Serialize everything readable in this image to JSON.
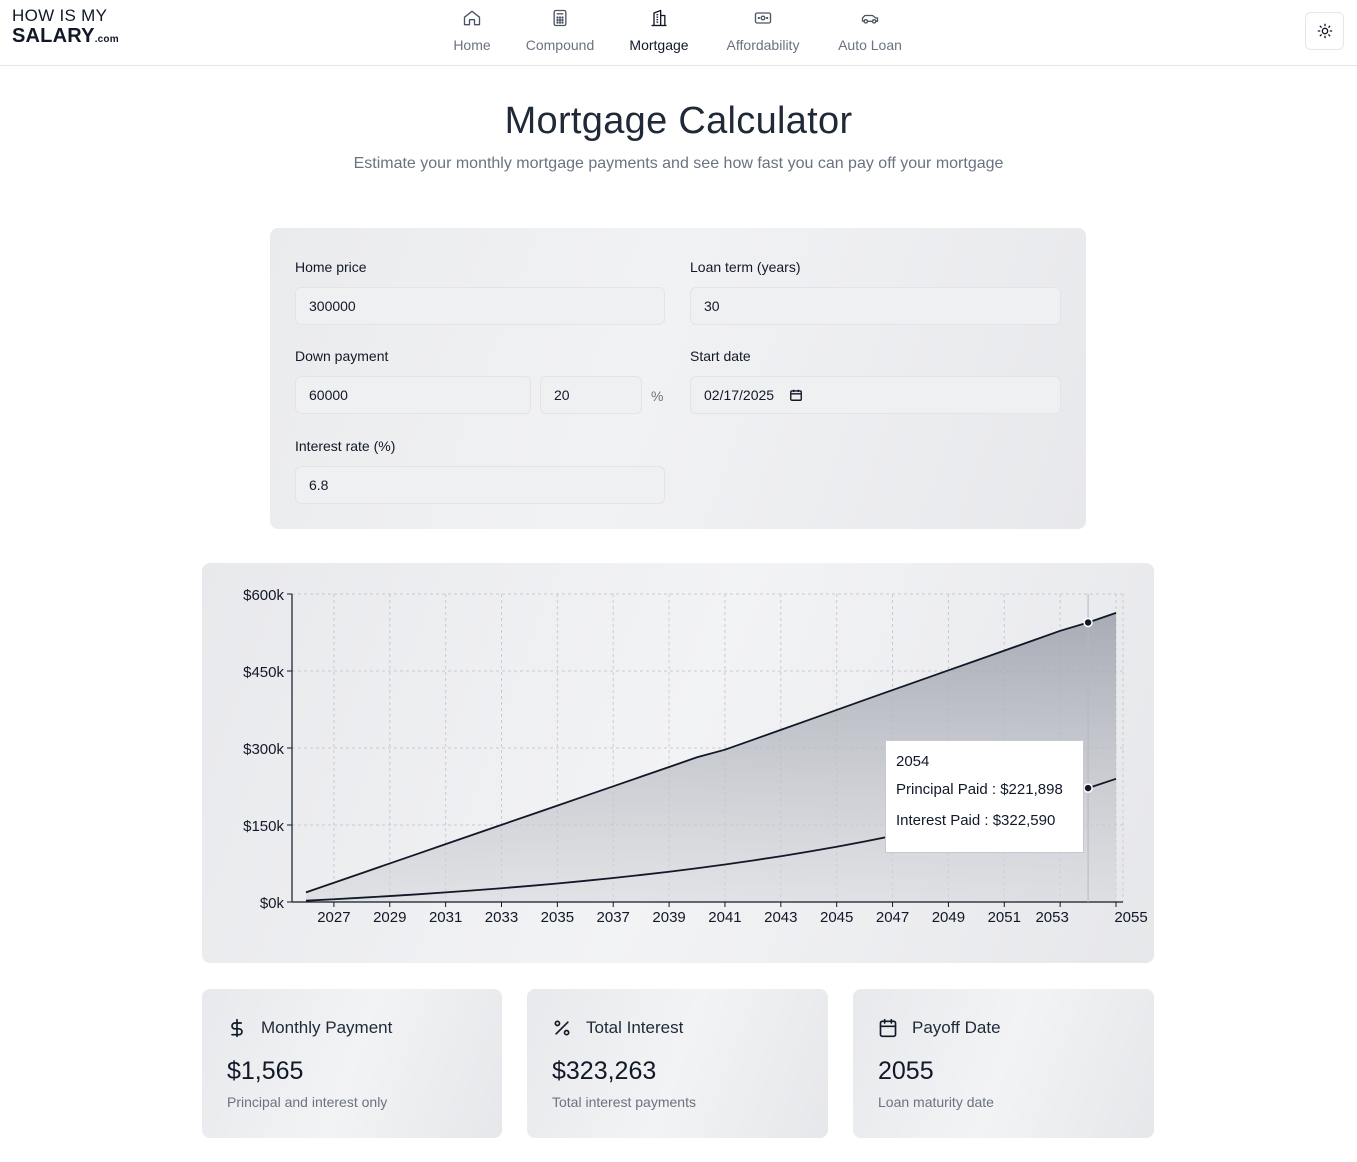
{
  "header": {
    "logo_line1": "HOW IS MY",
    "logo_line2": "SALARY",
    "logo_suffix": ".com",
    "nav": [
      {
        "label": "Home",
        "icon": "home-icon"
      },
      {
        "label": "Compound",
        "icon": "calculator-icon"
      },
      {
        "label": "Mortgage",
        "icon": "building-icon",
        "active": true
      },
      {
        "label": "Affordability",
        "icon": "banknote-icon"
      },
      {
        "label": "Auto Loan",
        "icon": "car-icon"
      }
    ],
    "theme_icon": "sun-icon"
  },
  "page": {
    "title": "Mortgage Calculator",
    "subtitle": "Estimate your monthly mortgage payments and see how fast you can pay off your mortgage"
  },
  "form": {
    "home_price_label": "Home price",
    "home_price_value": "300000",
    "loan_term_label": "Loan term (years)",
    "loan_term_value": "30",
    "down_payment_label": "Down payment",
    "down_payment_value": "60000",
    "down_payment_percent": "20",
    "percent_symbol": "%",
    "start_date_label": "Start date",
    "start_date_value": "02/17/2025",
    "interest_rate_label": "Interest rate (%)",
    "interest_rate_value": "6.8"
  },
  "chart_data": {
    "type": "area",
    "x": [
      2026,
      2027,
      2028,
      2029,
      2030,
      2031,
      2032,
      2033,
      2034,
      2035,
      2036,
      2037,
      2038,
      2039,
      2040,
      2041,
      2042,
      2043,
      2044,
      2045,
      2046,
      2047,
      2048,
      2049,
      2050,
      2051,
      2052,
      2053,
      2054,
      2055
    ],
    "series": [
      {
        "name": "Principal Paid",
        "values": [
          2600,
          5400,
          8400,
          11600,
          15000,
          18700,
          22600,
          26800,
          31300,
          36100,
          41300,
          46800,
          52700,
          59000,
          65800,
          73100,
          80900,
          89200,
          98100,
          107600,
          117800,
          128700,
          140400,
          152900,
          166300,
          180600,
          195900,
          212300,
          221898,
          240000
        ]
      },
      {
        "name": "Interest Paid",
        "values": [
          16200,
          32100,
          47900,
          63500,
          78900,
          94000,
          108900,
          123500,
          137700,
          151700,
          165300,
          178600,
          191500,
          204000,
          216100,
          223600,
          235100,
          246100,
          256600,
          266500,
          275800,
          284200,
          291700,
          298400,
          304200,
          309100,
          313000,
          316000,
          322590,
          323263
        ]
      }
    ],
    "stacked": true,
    "xticks": [
      "2027",
      "2029",
      "2031",
      "2033",
      "2035",
      "2037",
      "2039",
      "2041",
      "2043",
      "2045",
      "2047",
      "2049",
      "2051",
      "2053",
      "2055"
    ],
    "yticks": [
      "$0k",
      "$150k",
      "$300k",
      "$450k",
      "$600k"
    ],
    "ylim": [
      0,
      600000
    ],
    "grid": true,
    "tooltip": {
      "year": "2054",
      "principal": "Principal Paid : $221,898",
      "interest": "Interest Paid : $322,590"
    }
  },
  "stats": [
    {
      "icon": "dollar-icon",
      "title": "Monthly Payment",
      "value": "$1,565",
      "sub": "Principal and interest only"
    },
    {
      "icon": "percent-icon",
      "title": "Total Interest",
      "value": "$323,263",
      "sub": "Total interest payments"
    },
    {
      "icon": "calendar-icon",
      "title": "Payoff Date",
      "value": "2055",
      "sub": "Loan maturity date"
    }
  ]
}
